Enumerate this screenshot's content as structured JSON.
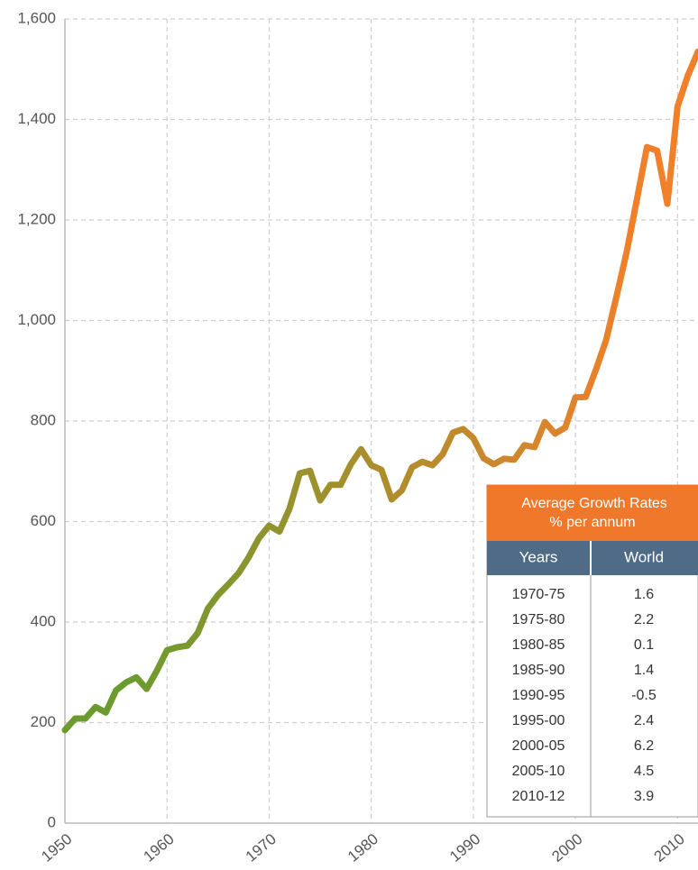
{
  "chart_data": {
    "type": "line",
    "x": [
      1950,
      1951,
      1952,
      1953,
      1954,
      1955,
      1956,
      1957,
      1958,
      1959,
      1960,
      1961,
      1962,
      1963,
      1964,
      1965,
      1966,
      1967,
      1968,
      1969,
      1970,
      1971,
      1972,
      1973,
      1974,
      1975,
      1976,
      1977,
      1978,
      1979,
      1980,
      1981,
      1982,
      1983,
      1984,
      1985,
      1986,
      1987,
      1988,
      1989,
      1990,
      1991,
      1992,
      1993,
      1994,
      1995,
      1996,
      1997,
      1998,
      1999,
      2000,
      2001,
      2002,
      2003,
      2004,
      2005,
      2006,
      2007,
      2008,
      2009,
      2010,
      2011,
      2012
    ],
    "series": [
      {
        "gradient": [
          "#6b9b2f",
          "#f0802a"
        ],
        "values": [
          185,
          208,
          208,
          231,
          220,
          264,
          280,
          290,
          267,
          303,
          344,
          350,
          353,
          378,
          427,
          454,
          475,
          497,
          529,
          567,
          592,
          580,
          626,
          696,
          701,
          642,
          673,
          673,
          714,
          744,
          712,
          703,
          644,
          662,
          708,
          719,
          712,
          734,
          777,
          784,
          766,
          726,
          714,
          725,
          723,
          752,
          748,
          798,
          775,
          787,
          847,
          848,
          902,
          961,
          1046,
          1135,
          1239,
          1345,
          1338,
          1232,
          1426,
          1487,
          1535
        ]
      }
    ],
    "xlim": [
      1950,
      2012
    ],
    "xticks": [
      1950,
      1960,
      1970,
      1980,
      1990,
      2000,
      2010
    ],
    "ylim": [
      0,
      1600
    ],
    "yticks": [
      0,
      {
        "value": 200,
        "label": "200"
      },
      {
        "value": 400,
        "label": "400"
      },
      {
        "value": 600,
        "label": "600"
      },
      {
        "value": 800,
        "label": "800"
      },
      {
        "value": 1000,
        "label": "1,000"
      },
      {
        "value": 1200,
        "label": "1,200"
      },
      {
        "value": 1400,
        "label": "1,400"
      },
      {
        "value": 1600,
        "label": "1,600"
      }
    ],
    "grid": true
  },
  "table": {
    "title": "Average Growth Rates",
    "subtitle": "% per annum",
    "header": [
      "Years",
      "World"
    ],
    "rows": [
      [
        "1970-75",
        "1.6"
      ],
      [
        "1975-80",
        "2.2"
      ],
      [
        "1980-85",
        "0.1"
      ],
      [
        "1985-90",
        "1.4"
      ],
      [
        "1990-95",
        "-0.5"
      ],
      [
        "1995-00",
        "2.4"
      ],
      [
        "2000-05",
        "6.2"
      ],
      [
        "2005-10",
        "4.5"
      ],
      [
        "2010-12",
        "3.9"
      ]
    ]
  }
}
